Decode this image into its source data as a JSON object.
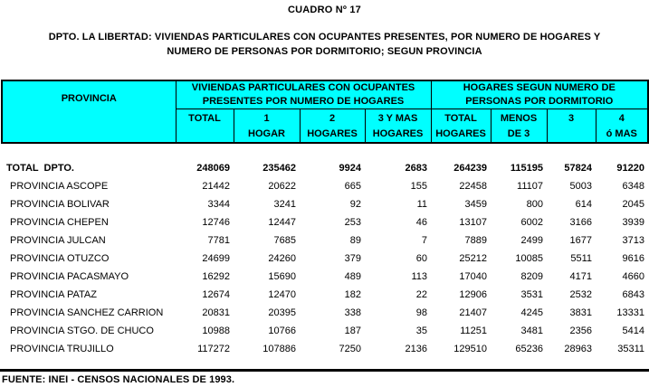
{
  "title": "CUADRO Nº 17",
  "subtitle_line1": "DPTO. LA LIBERTAD: VIVIENDAS PARTICULARES CON OCUPANTES PRESENTES, POR NUMERO DE HOGARES Y",
  "subtitle_line2": "NUMERO DE PERSONAS POR DORMITORIO; SEGUN PROVINCIA",
  "table": {
    "header": {
      "provincia": "PROVINCIA",
      "group1": {
        "line1": "VIVIENDAS PARTICULARES CON OCUPANTES",
        "line2": "PRESENTES POR NUMERO DE HOGARES"
      },
      "group2": {
        "line1": "HOGARES SEGUN NUMERO DE",
        "line2": "PERSONAS POR DORMITORIO"
      },
      "columns": [
        {
          "line1": "TOTAL",
          "line2": ""
        },
        {
          "line1": "1",
          "line2": "HOGAR"
        },
        {
          "line1": "2",
          "line2": "HOGARES"
        },
        {
          "line1": "3 Y MAS",
          "line2": "HOGARES"
        },
        {
          "line1": "TOTAL",
          "line2": "HOGARES"
        },
        {
          "line1": "MENOS",
          "line2": "DE 3"
        },
        {
          "line1": "3",
          "line2": ""
        },
        {
          "line1": "4",
          "line2": "ó MAS"
        }
      ]
    },
    "rows": [
      {
        "label": "TOTAL  DPTO.",
        "bold": true,
        "values": [
          248069,
          235462,
          9924,
          2683,
          264239,
          115195,
          57824,
          91220
        ]
      },
      {
        "label": "PROVINCIA ASCOPE",
        "bold": false,
        "values": [
          21442,
          20622,
          665,
          155,
          22458,
          11107,
          5003,
          6348
        ]
      },
      {
        "label": "PROVINCIA BOLIVAR",
        "bold": false,
        "values": [
          3344,
          3241,
          92,
          11,
          3459,
          800,
          614,
          2045
        ]
      },
      {
        "label": "PROVINCIA CHEPEN",
        "bold": false,
        "values": [
          12746,
          12447,
          253,
          46,
          13107,
          6002,
          3166,
          3939
        ]
      },
      {
        "label": "PROVINCIA JULCAN",
        "bold": false,
        "values": [
          7781,
          7685,
          89,
          7,
          7889,
          2499,
          1677,
          3713
        ]
      },
      {
        "label": "PROVINCIA OTUZCO",
        "bold": false,
        "values": [
          24699,
          24260,
          379,
          60,
          25212,
          10085,
          5511,
          9616
        ]
      },
      {
        "label": "PROVINCIA PACASMAYO",
        "bold": false,
        "values": [
          16292,
          15690,
          489,
          113,
          17040,
          8209,
          4171,
          4660
        ]
      },
      {
        "label": "PROVINCIA PATAZ",
        "bold": false,
        "values": [
          12674,
          12470,
          182,
          22,
          12906,
          3531,
          2532,
          6843
        ]
      },
      {
        "label": "PROVINCIA SANCHEZ CARRION",
        "bold": false,
        "values": [
          20831,
          20395,
          338,
          98,
          21407,
          4245,
          3831,
          13331
        ]
      },
      {
        "label": "PROVINCIA STGO. DE CHUCO",
        "bold": false,
        "values": [
          10988,
          10766,
          187,
          35,
          11251,
          3481,
          2356,
          5414
        ]
      },
      {
        "label": "PROVINCIA TRUJILLO",
        "bold": false,
        "values": [
          117272,
          107886,
          7250,
          2136,
          129510,
          65236,
          28963,
          35311
        ]
      }
    ]
  },
  "footer": "FUENTE: INEI - CENSOS NACIONALES DE 1993.",
  "colors": {
    "header_bg": "#00FFFF",
    "border": "#000000",
    "text": "#000000",
    "page_bg": "#FFFFFF"
  }
}
